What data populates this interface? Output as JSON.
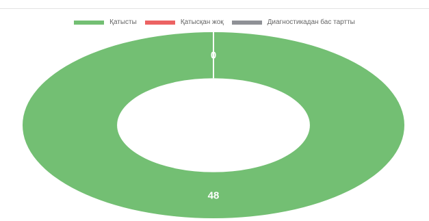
{
  "chart_data": {
    "type": "pie",
    "variant": "doughnut",
    "legend_position": "top",
    "series": [
      {
        "name": "Қатысты",
        "value": 48,
        "color": "#73bf73"
      },
      {
        "name": "Қатысқан жоқ",
        "value": 0,
        "color": "#ec6363"
      },
      {
        "name": "Диагностикадан бас тартты",
        "value": 0,
        "color": "#8f9196"
      }
    ],
    "slice_labels": [
      "48",
      "0"
    ]
  }
}
